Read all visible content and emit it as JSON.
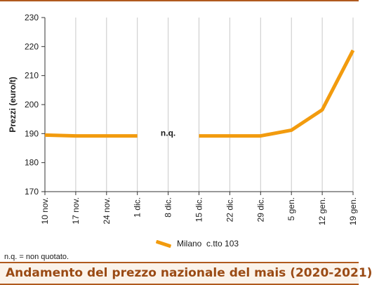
{
  "chart_data": {
    "type": "line",
    "title": "Andamento del prezzo nazionale del mais (2020-2021)",
    "ylabel": "Prezzi (euro/t)",
    "xlabel": "",
    "ylim": [
      170,
      230
    ],
    "yticks": [
      170,
      180,
      190,
      200,
      210,
      220,
      230
    ],
    "categories": [
      "10 nov.",
      "17 nov.",
      "24 nov.",
      "1 dic.",
      "8 dic.",
      "15 dic.",
      "22 dic.",
      "29 dic.",
      "5 gen.",
      "12 gen.",
      "19 gen."
    ],
    "series": [
      {
        "name": "Milano  c.tto 103",
        "color": "#f29b0e",
        "values": [
          189.5,
          189.2,
          189.2,
          189.2,
          null,
          189.2,
          189.2,
          189.2,
          191.2,
          198.2,
          218.7
        ]
      }
    ],
    "annotations": [
      {
        "text": "n.q.",
        "x": "8 dic.",
        "y": 190
      }
    ],
    "grid": {
      "vertical": true,
      "horizontal": false
    },
    "legend_position": "bottom-center"
  },
  "footnote": "n.q. = non quotato.",
  "footer_title": "Andamento del prezzo nazionale del mais (2020-2021)"
}
